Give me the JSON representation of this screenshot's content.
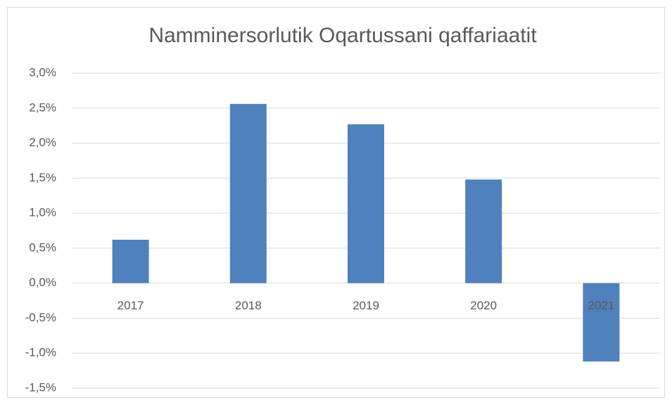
{
  "chart_data": {
    "type": "bar",
    "title": "Namminersorlutik Oqartussani qaffariaatit",
    "categories": [
      "2017",
      "2018",
      "2019",
      "2020",
      "2021"
    ],
    "values": [
      0.62,
      2.56,
      2.27,
      1.48,
      -1.12
    ],
    "color": "#4f81bd",
    "ylim": [
      -1.5,
      3.0
    ],
    "yticks": [
      {
        "value": -1.5,
        "label": "-1,5%"
      },
      {
        "value": -1.0,
        "label": "-1,0%"
      },
      {
        "value": -0.5,
        "label": "-0,5%"
      },
      {
        "value": 0.0,
        "label": "0,0%"
      },
      {
        "value": 0.5,
        "label": "0,5%"
      },
      {
        "value": 1.0,
        "label": "1,0%"
      },
      {
        "value": 1.5,
        "label": "1,5%"
      },
      {
        "value": 2.0,
        "label": "2,0%"
      },
      {
        "value": 2.5,
        "label": "2,5%"
      },
      {
        "value": 3.0,
        "label": "3,0%"
      }
    ],
    "grid": true
  }
}
